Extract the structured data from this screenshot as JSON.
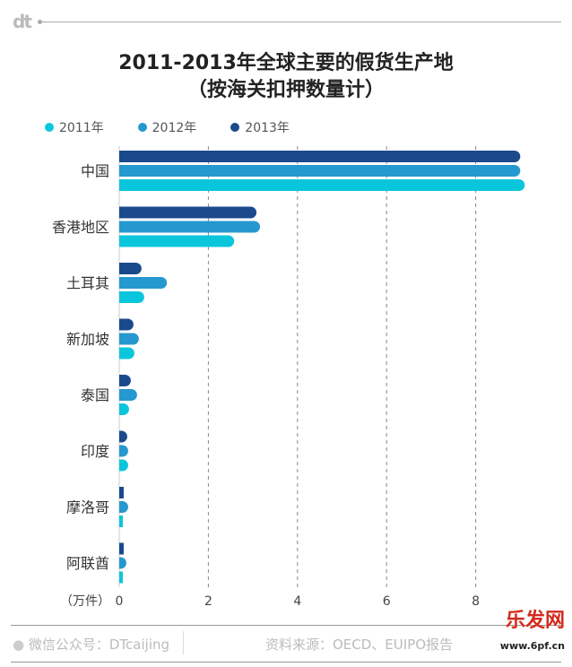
{
  "brand": "dt",
  "chart_data": {
    "type": "bar",
    "orientation": "horizontal",
    "title": "2011-2013年全球主要的假货生产地",
    "subtitle": "（按海关扣押数量计）",
    "xlabel": "（万件）",
    "xlim": [
      0,
      9.2
    ],
    "xticks": [
      "0",
      "2",
      "4",
      "6",
      "8"
    ],
    "grid": "dashed vertical",
    "legend_position": "top-left",
    "categories": [
      "中国",
      "香港地区",
      "土耳其",
      "新加坡",
      "泰国",
      "印度",
      "摩洛哥",
      "阿联酋"
    ],
    "series": [
      {
        "name": "2013年",
        "color": "#1b4a8c",
        "values": [
          9.0,
          3.08,
          0.5,
          0.32,
          0.26,
          0.18,
          0.1,
          0.1
        ]
      },
      {
        "name": "2012年",
        "color": "#2598cf",
        "values": [
          9.0,
          3.16,
          1.07,
          0.44,
          0.4,
          0.2,
          0.2,
          0.16
        ]
      },
      {
        "name": "2011年",
        "color": "#0ac6dc",
        "values": [
          9.1,
          2.58,
          0.56,
          0.34,
          0.22,
          0.2,
          0.08,
          0.08
        ]
      }
    ],
    "legend_order": [
      "2011年",
      "2012年",
      "2013年"
    ]
  },
  "footer": {
    "wechat": "微信公众号：DTcaijing",
    "source": "资料来源：OECD、EUIPO报告",
    "watermark": "乐发网",
    "watermark_url": "www.6pf.cn"
  }
}
